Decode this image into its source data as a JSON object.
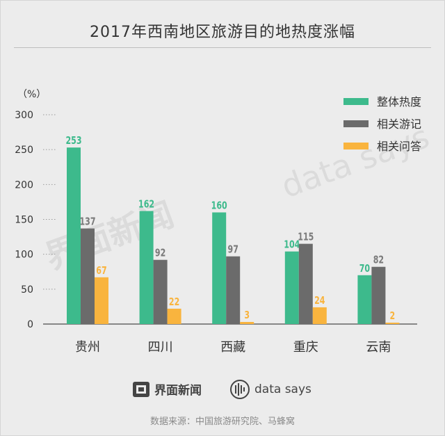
{
  "title": "2017年西南地区旅游目的地热度涨幅",
  "watermark": {
    "left_logo": "界面新闻",
    "right_text": "data says"
  },
  "footer": {
    "brand_left": "界面新闻",
    "brand_right": "data says",
    "source": "数据来源：中国旅游研究院、马蜂窝"
  },
  "colors": {
    "series1": "#3dba8c",
    "series2": "#6b6b6b",
    "series3": "#f9b43e"
  },
  "chart_data": {
    "type": "bar",
    "title": "2017年西南地区旅游目的地热度涨幅",
    "ylabel": "（%）",
    "xlabel": "",
    "ylim": [
      0,
      300
    ],
    "yticks": [
      0,
      50,
      100,
      150,
      200,
      250,
      300
    ],
    "categories": [
      "贵州",
      "四川",
      "西藏",
      "重庆",
      "云南"
    ],
    "series": [
      {
        "name": "整体热度",
        "values": [
          253,
          162,
          160,
          104,
          70
        ]
      },
      {
        "name": "相关游记",
        "values": [
          137,
          92,
          97,
          115,
          82
        ]
      },
      {
        "name": "相关问答",
        "values": [
          67,
          22,
          3,
          24,
          2
        ]
      }
    ],
    "legend": "top-right",
    "grid": true
  }
}
